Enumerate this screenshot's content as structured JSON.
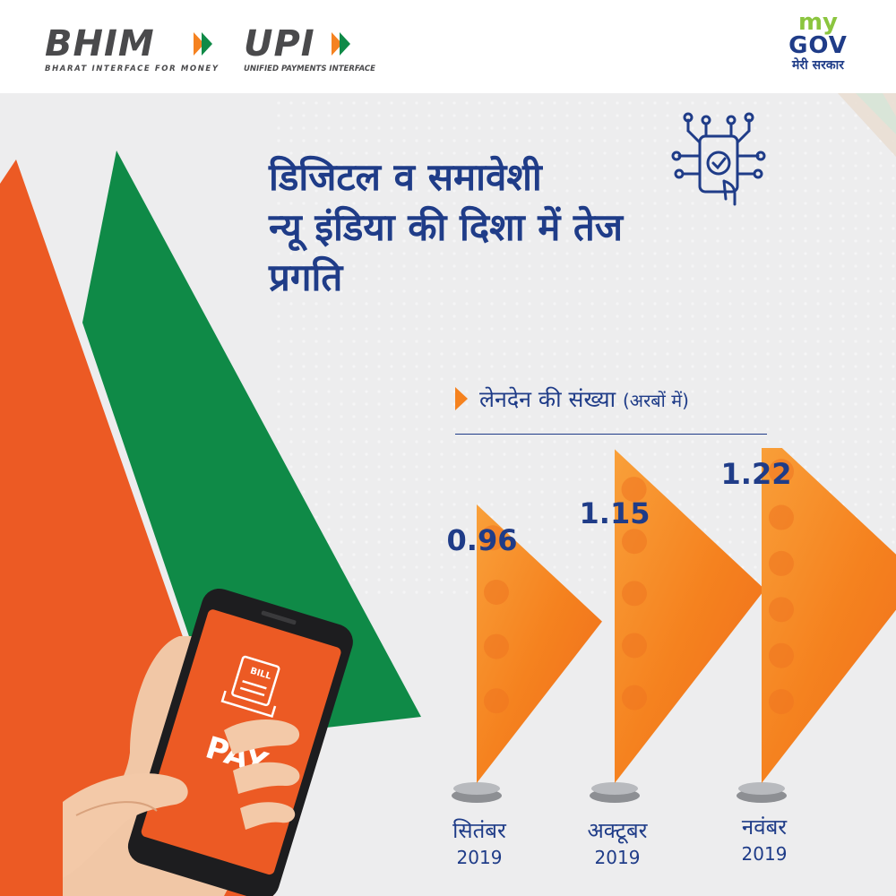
{
  "header": {
    "bhim_logo": "BHIM",
    "bhim_tagline": "BHARAT INTERFACE FOR MONEY",
    "upi_logo": "UPI",
    "upi_tagline": "UNIFIED PAYMENTS INTERFACE",
    "mygov_my": "my",
    "mygov_gov": "GOV",
    "mygov_subtitle": "मेरी सरकार"
  },
  "title_lines": [
    "डिजिटल व समावेशी",
    "न्यू इंडिया की दिशा में तेज",
    "प्रगति"
  ],
  "phone": {
    "screen_label": "PAY",
    "bill_label": "BILL"
  },
  "colors": {
    "saffron": "#ec5a24",
    "green": "#0f8a47",
    "navy": "#1f3c88",
    "flag_orange": "#f5821f"
  },
  "icons": [
    "digital-circuit-phone-icon",
    "rupee-coin-icon",
    "pointer-arrow-icon"
  ],
  "chart_data": {
    "type": "bar",
    "title": "लेनदेन की संख्या",
    "unit": "(अरबों में)",
    "categories": [
      {
        "month": "सितंबर",
        "year": "2019"
      },
      {
        "month": "अक्टूबर",
        "year": "2019"
      },
      {
        "month": "नवंबर",
        "year": "2019"
      }
    ],
    "values": [
      0.96,
      1.15,
      1.22
    ],
    "value_labels": [
      "0.96",
      "1.15",
      "1.22"
    ],
    "ylim": [
      0,
      1.3
    ],
    "grid": false,
    "legend": "none"
  }
}
